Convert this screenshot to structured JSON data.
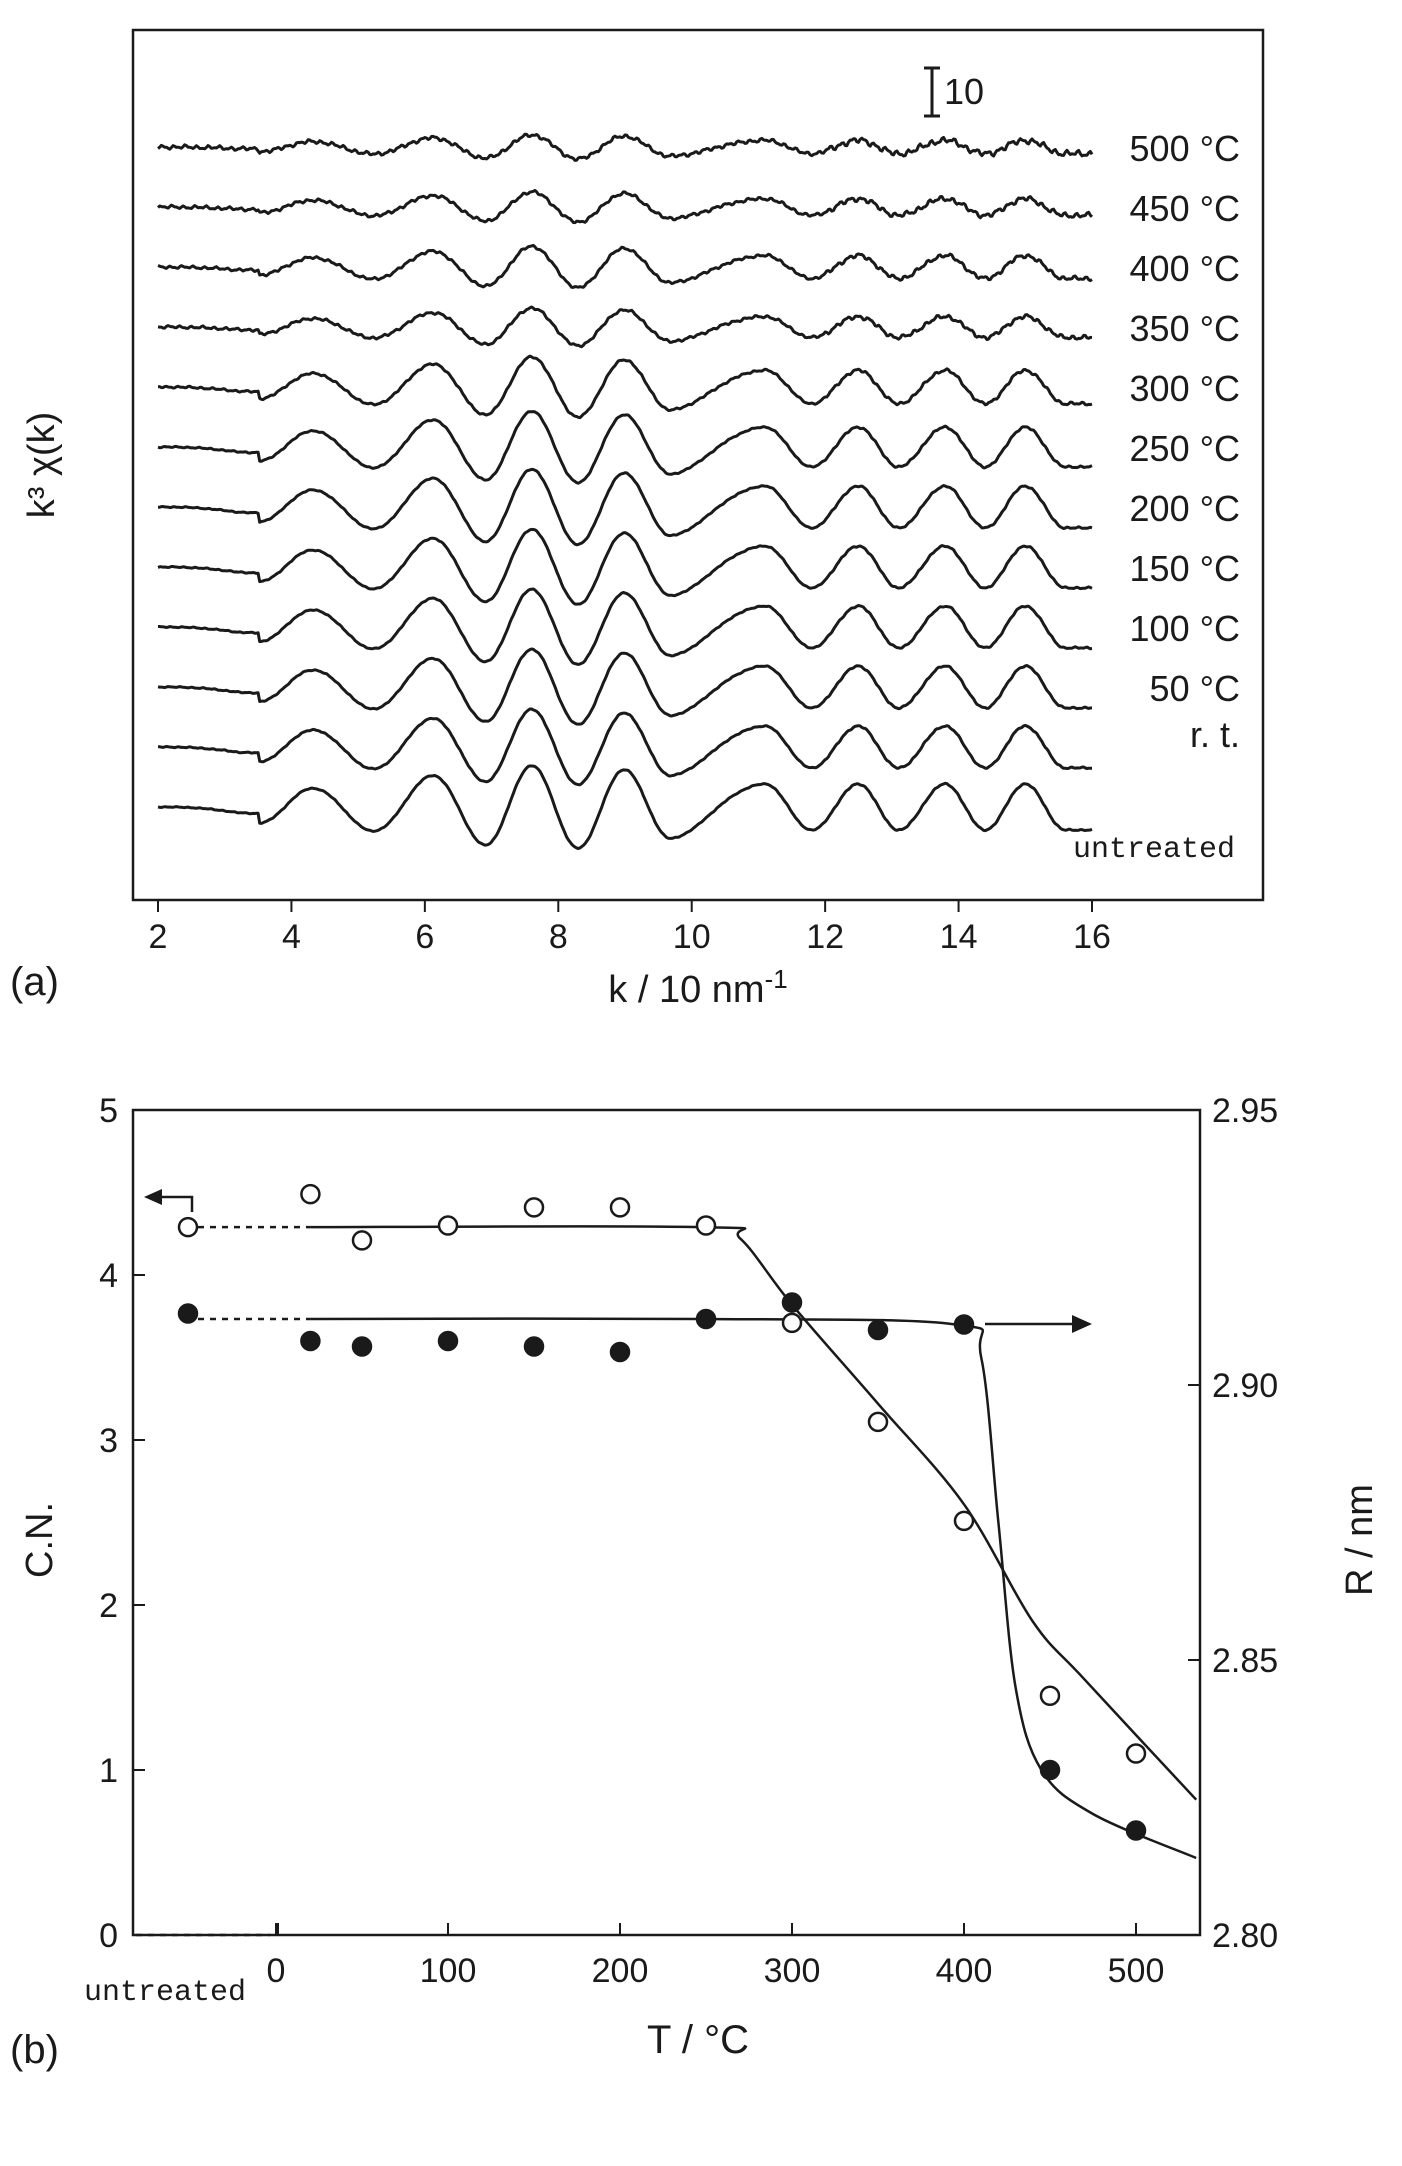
{
  "chart_data": [
    {
      "panel": "(a)",
      "type": "line",
      "xlabel": "k / 10 nm",
      "xlabel_sup": "-1",
      "ylabel": "k³ χ(k)",
      "xlim": [
        2,
        16
      ],
      "xticks": [
        "2",
        "4",
        "6",
        "8",
        "10",
        "12",
        "14",
        "16"
      ],
      "scale_bar_label": "10",
      "series": [
        {
          "name": "500 °C",
          "amp": 0.32,
          "noise": 0.35
        },
        {
          "name": "450 °C",
          "amp": 0.4,
          "noise": 0.3
        },
        {
          "name": "400 °C",
          "amp": 0.55,
          "noise": 0.25
        },
        {
          "name": "350 °C",
          "amp": 0.5,
          "noise": 0.25
        },
        {
          "name": "300 °C",
          "amp": 0.8,
          "noise": 0.18
        },
        {
          "name": "250 °C",
          "amp": 0.95,
          "noise": 0.12
        },
        {
          "name": "200 °C",
          "amp": 1.0,
          "noise": 0.1
        },
        {
          "name": "150 °C",
          "amp": 1.0,
          "noise": 0.1
        },
        {
          "name": "100 °C",
          "amp": 1.0,
          "noise": 0.1
        },
        {
          "name": "50 °C",
          "amp": 1.0,
          "noise": 0.1
        },
        {
          "name": "r. t.",
          "amp": 1.0,
          "noise": 0.1
        },
        {
          "name": "untreated",
          "amp": 1.1,
          "noise": 0.08
        }
      ],
      "oscillation": {
        "peaks_k": [
          4.3,
          6.1,
          7.6,
          9.0,
          11.1,
          12.5,
          13.8,
          15.0
        ],
        "troughs_k": [
          3.5,
          5.2,
          6.9,
          8.3,
          9.7,
          11.8,
          13.1,
          14.4,
          15.6
        ]
      }
    },
    {
      "panel": "(b)",
      "type": "scatter",
      "xlabel": "T / °C",
      "ylabel_left": "C.N.",
      "ylabel_right": "R / nm",
      "x_untreated_label": "untreated",
      "xlim": [
        -85,
        535
      ],
      "ylim_left": [
        0,
        5
      ],
      "ylim_right": [
        2.8,
        2.95
      ],
      "xticks": [
        "0",
        "100",
        "200",
        "300",
        "400",
        "500"
      ],
      "yticks_left": [
        "0",
        "1",
        "2",
        "3",
        "4",
        "5"
      ],
      "yticks_right": [
        "2.80",
        "2.85",
        "2.90",
        "2.95"
      ],
      "series": [
        {
          "marker": "open",
          "axis": "left",
          "points": [
            [
              "untreated",
              4.29
            ],
            [
              20,
              4.49
            ],
            [
              50,
              4.21
            ],
            [
              100,
              4.3
            ],
            [
              150,
              4.41
            ],
            [
              200,
              4.41
            ],
            [
              250,
              4.3
            ],
            [
              300,
              3.71
            ],
            [
              350,
              3.11
            ],
            [
              400,
              2.51
            ],
            [
              450,
              1.45
            ],
            [
              500,
              1.1
            ]
          ]
        },
        {
          "marker": "filled",
          "axis": "right",
          "points": [
            [
              "untreated",
              2.913
            ],
            [
              20,
              2.908
            ],
            [
              50,
              2.907
            ],
            [
              100,
              2.908
            ],
            [
              150,
              2.907
            ],
            [
              200,
              2.906
            ],
            [
              250,
              2.912
            ],
            [
              300,
              2.915
            ],
            [
              350,
              2.91
            ],
            [
              400,
              2.911
            ],
            [
              450,
              2.83
            ],
            [
              500,
              2.819
            ]
          ]
        }
      ],
      "fit_lines": {
        "open": [
          [
            20,
            4.29
          ],
          [
            250,
            4.29
          ],
          [
            270,
            4.22
          ],
          [
            300,
            3.82
          ],
          [
            350,
            3.22
          ],
          [
            400,
            2.61
          ],
          [
            440,
            1.9
          ],
          [
            470,
            1.55
          ],
          [
            535,
            0.82
          ]
        ],
        "filled": [
          [
            20,
            2.912
          ],
          [
            250,
            2.912
          ],
          [
            395,
            2.911
          ],
          [
            410,
            2.905
          ],
          [
            420,
            2.875
          ],
          [
            430,
            2.845
          ],
          [
            445,
            2.83
          ],
          [
            475,
            2.822
          ],
          [
            535,
            2.814
          ]
        ]
      }
    }
  ]
}
